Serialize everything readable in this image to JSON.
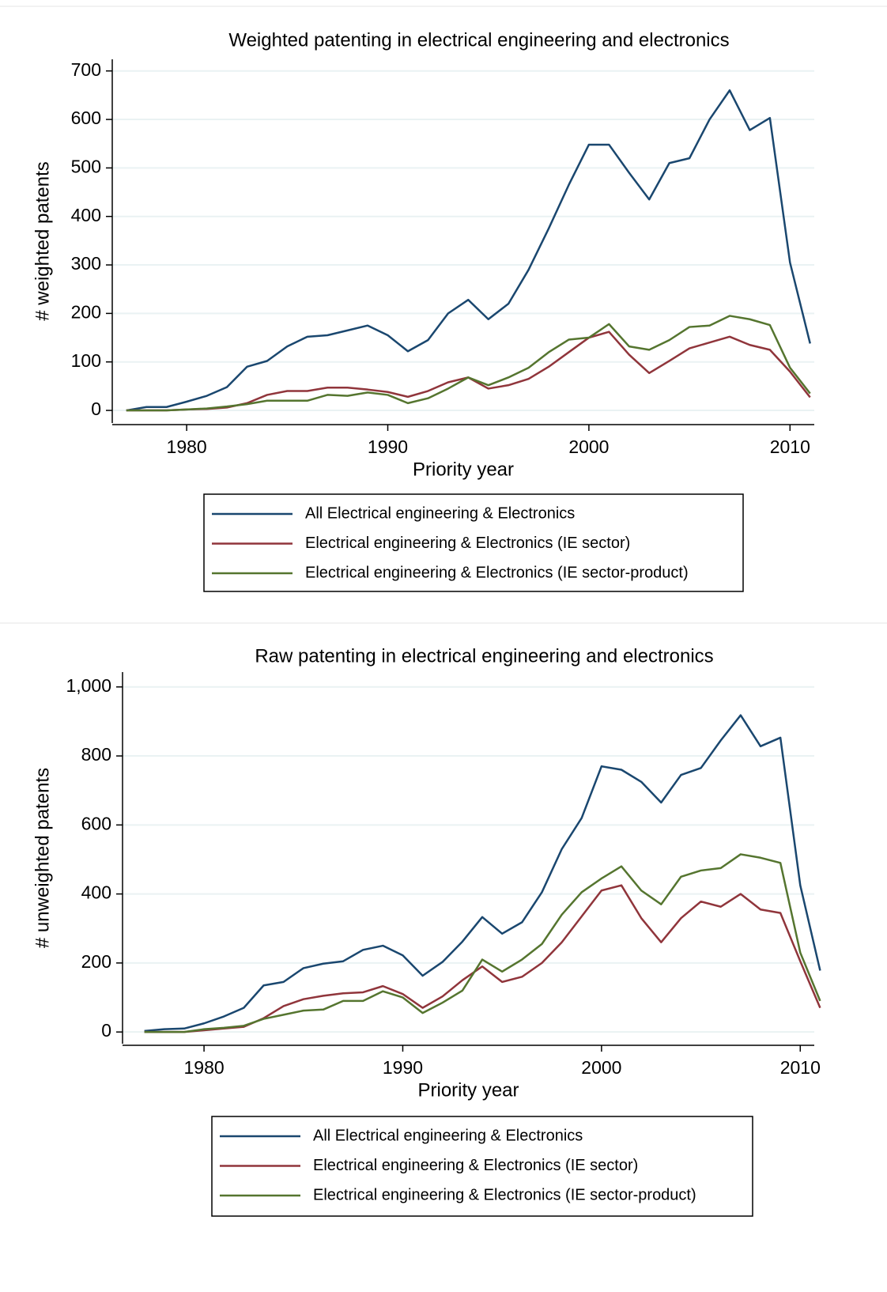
{
  "chart_data": [
    {
      "type": "line",
      "title": "Weighted patenting in electrical engineering and electronics",
      "x_label": "Priority year",
      "y_label": "# weighted patents",
      "x": [
        1977,
        1978,
        1979,
        1980,
        1981,
        1982,
        1983,
        1984,
        1985,
        1986,
        1987,
        1988,
        1989,
        1990,
        1991,
        1992,
        1993,
        1994,
        1995,
        1996,
        1997,
        1998,
        1999,
        2000,
        2001,
        2002,
        2003,
        2004,
        2005,
        2006,
        2007,
        2008,
        2009,
        2010,
        2011
      ],
      "xlim": [
        1976.3,
        2011.6
      ],
      "xticks": [
        1980,
        1990,
        2000,
        2010
      ],
      "ylim": [
        -26,
        724
      ],
      "yticks": [
        0,
        100,
        200,
        300,
        400,
        500,
        600,
        700
      ],
      "grid": true,
      "series": [
        {
          "name": "All Electrical engineering & Electronics",
          "color": "#1a476f",
          "values": [
            0,
            7,
            7,
            18,
            30,
            48,
            90,
            102,
            132,
            152,
            155,
            165,
            175,
            155,
            122,
            145,
            200,
            228,
            188,
            220,
            290,
            375,
            465,
            548,
            548,
            490,
            435,
            510,
            520,
            600,
            660,
            578,
            603,
            305,
            138
          ]
        },
        {
          "name": "Electrical engineering & Electronics (IE sector)",
          "color": "#90353b",
          "values": [
            0,
            0,
            0,
            2,
            3,
            6,
            15,
            32,
            40,
            40,
            47,
            47,
            43,
            38,
            28,
            40,
            58,
            68,
            45,
            52,
            65,
            90,
            120,
            150,
            162,
            115,
            77,
            102,
            128,
            140,
            152,
            135,
            125,
            80,
            27
          ]
        },
        {
          "name": "Electrical engineering & Electronics (IE sector-product)",
          "color": "#55752f",
          "values": [
            0,
            0,
            0,
            2,
            4,
            8,
            13,
            20,
            20,
            20,
            32,
            30,
            37,
            32,
            15,
            25,
            45,
            68,
            52,
            68,
            88,
            120,
            146,
            150,
            178,
            132,
            125,
            145,
            172,
            175,
            195,
            188,
            176,
            88,
            35
          ]
        }
      ]
    },
    {
      "type": "line",
      "title": "Raw patenting in electrical engineering and electronics",
      "x_label": "Priority year",
      "y_label": "# unweighted patents",
      "x": [
        1977,
        1978,
        1979,
        1980,
        1981,
        1982,
        1983,
        1984,
        1985,
        1986,
        1987,
        1988,
        1989,
        1990,
        1991,
        1992,
        1993,
        1994,
        1995,
        1996,
        1997,
        1998,
        1999,
        2000,
        2001,
        2002,
        2003,
        2004,
        2005,
        2006,
        2007,
        2008,
        2009,
        2010,
        2011
      ],
      "xlim": [
        1975.9,
        2011.5
      ],
      "xticks": [
        1980,
        1990,
        2000,
        2010
      ],
      "ylim": [
        -34,
        1043
      ],
      "yticks": [
        0,
        200,
        400,
        600,
        800,
        {
          "value": 1000,
          "label": "1,000"
        }
      ],
      "grid": true,
      "series": [
        {
          "name": "All Electrical engineering & Electronics",
          "color": "#1a476f",
          "values": [
            3,
            8,
            10,
            25,
            45,
            70,
            135,
            145,
            185,
            198,
            205,
            238,
            250,
            222,
            163,
            203,
            262,
            333,
            285,
            318,
            405,
            530,
            620,
            770,
            760,
            725,
            665,
            745,
            765,
            845,
            918,
            828,
            853,
            425,
            178
          ]
        },
        {
          "name": "Electrical engineering & Electronics (IE sector)",
          "color": "#90353b",
          "values": [
            0,
            0,
            0,
            5,
            10,
            15,
            40,
            75,
            95,
            105,
            112,
            115,
            133,
            110,
            70,
            103,
            150,
            190,
            145,
            160,
            200,
            260,
            335,
            410,
            425,
            330,
            260,
            330,
            378,
            363,
            400,
            355,
            345,
            205,
            70
          ]
        },
        {
          "name": "Electrical engineering & Electronics (IE sector-product)",
          "color": "#55752f",
          "values": [
            0,
            0,
            0,
            8,
            12,
            18,
            38,
            50,
            62,
            65,
            90,
            90,
            118,
            100,
            55,
            85,
            120,
            210,
            175,
            210,
            255,
            340,
            405,
            445,
            480,
            410,
            370,
            450,
            468,
            475,
            515,
            505,
            490,
            230,
            90
          ]
        }
      ]
    }
  ]
}
